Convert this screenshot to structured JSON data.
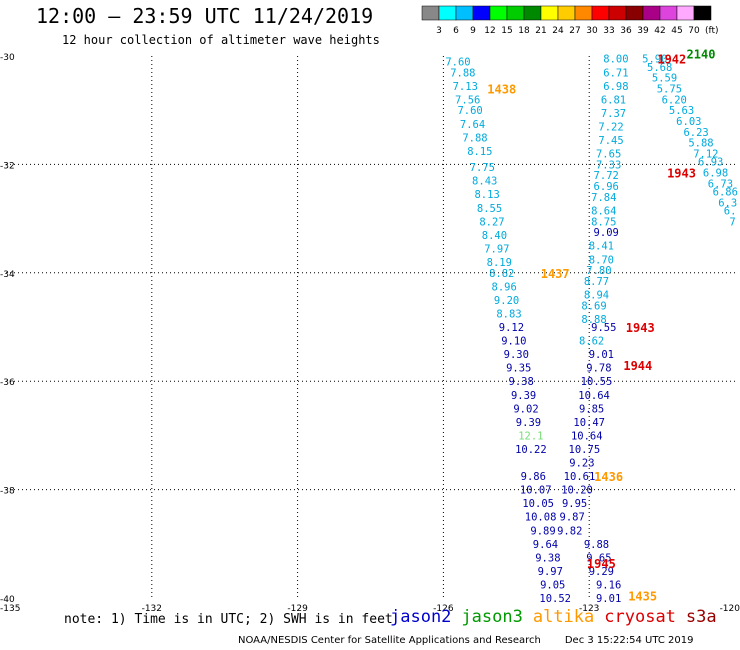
{
  "title": "12:00 – 23:59 UTC 11/24/2019",
  "subtitle": "12 hour collection of altimeter wave heights",
  "color_scale": {
    "unit_label": "(ft)",
    "ticks": [
      "3",
      "6",
      "9",
      "12",
      "15",
      "18",
      "21",
      "24",
      "27",
      "30",
      "33",
      "36",
      "39",
      "42",
      "45",
      "70"
    ],
    "colors": [
      "#888888",
      "#00ffff",
      "#00bfff",
      "#0000ff",
      "#00ff00",
      "#00cc00",
      "#008800",
      "#ffff00",
      "#ffcc00",
      "#ff8800",
      "#ff0000",
      "#cc0000",
      "#880000",
      "#aa0088",
      "#dd44dd",
      "#ffaaff",
      "#000000"
    ]
  },
  "note": "note: 1) Time is in UTC; 2) SWH is in feet",
  "satellites": [
    {
      "name": "jason2",
      "color": "#0000cc"
    },
    {
      "name": "jason3",
      "color": "#009900"
    },
    {
      "name": "altika",
      "color": "#ff9900"
    },
    {
      "name": "cryosat",
      "color": "#dd0000"
    },
    {
      "name": "s3a",
      "color": "#990000"
    }
  ],
  "footer_left": "NOAA/NESDIS Center for Satellite Applications and Research",
  "footer_right": "Dec  3 15:22:54 UTC 2019",
  "chart_data": {
    "type": "scatter",
    "xlim": [
      -135,
      -120
    ],
    "ylim": [
      -40,
      -30
    ],
    "x_ticks": [
      "-135",
      "-132",
      "-129",
      "-126",
      "-123",
      "-120"
    ],
    "y_ticks": [
      "-30",
      "-32",
      "-34",
      "-36",
      "-38",
      "-40"
    ],
    "grid": true,
    "tracks": [
      {
        "sat": "altika",
        "color": "#00aadd",
        "points": [
          {
            "lon": -125.7,
            "lat": -30.1,
            "value": "7.60"
          },
          {
            "lon": -125.6,
            "lat": -30.3,
            "value": "7.88"
          },
          {
            "lon": -125.55,
            "lat": -30.55,
            "value": "7.13"
          },
          {
            "lon": -125.5,
            "lat": -30.8,
            "value": "7.56"
          },
          {
            "lon": -125.45,
            "lat": -31.0,
            "value": "7.60"
          },
          {
            "lon": -125.4,
            "lat": -31.25,
            "value": "7.64"
          },
          {
            "lon": -125.35,
            "lat": -31.5,
            "value": "7.88"
          },
          {
            "lon": -125.25,
            "lat": -31.75,
            "value": "8.15"
          },
          {
            "lon": -125.2,
            "lat": -32.05,
            "value": "7.75"
          },
          {
            "lon": -125.15,
            "lat": -32.3,
            "value": "8.43"
          },
          {
            "lon": -125.1,
            "lat": -32.55,
            "value": "8.13"
          },
          {
            "lon": -125.05,
            "lat": -32.8,
            "value": "8.55"
          },
          {
            "lon": -125.0,
            "lat": -33.05,
            "value": "8.27"
          },
          {
            "lon": -124.95,
            "lat": -33.3,
            "value": "8.40"
          },
          {
            "lon": -124.9,
            "lat": -33.55,
            "value": "7.97"
          },
          {
            "lon": -124.85,
            "lat": -33.8,
            "value": "8.19"
          },
          {
            "lon": -124.8,
            "lat": -34.0,
            "value": "8.82"
          },
          {
            "lon": -124.75,
            "lat": -34.25,
            "value": "8.96"
          },
          {
            "lon": -124.7,
            "lat": -34.5,
            "value": "9.20"
          },
          {
            "lon": -124.65,
            "lat": -34.75,
            "value": "8.83"
          }
        ]
      },
      {
        "sat": "jason2",
        "color": "#0000aa",
        "points": [
          {
            "lon": -124.6,
            "lat": -35.0,
            "value": "9.12"
          },
          {
            "lon": -124.55,
            "lat": -35.25,
            "value": "9.10"
          },
          {
            "lon": -124.5,
            "lat": -35.5,
            "value": "9.30"
          },
          {
            "lon": -124.45,
            "lat": -35.75,
            "value": "9.35"
          },
          {
            "lon": -124.4,
            "lat": -36.0,
            "value": "9.38"
          },
          {
            "lon": -124.35,
            "lat": -36.25,
            "value": "9.39"
          },
          {
            "lon": -124.3,
            "lat": -36.5,
            "value": "9.02"
          },
          {
            "lon": -124.25,
            "lat": -36.75,
            "value": "9.39"
          },
          {
            "lon": -124.2,
            "lat": -37.25,
            "value": "10.22"
          },
          {
            "lon": -124.15,
            "lat": -37.75,
            "value": "9.86"
          },
          {
            "lon": -124.1,
            "lat": -38.0,
            "value": "10.07"
          },
          {
            "lon": -124.05,
            "lat": -38.25,
            "value": "10.05"
          },
          {
            "lon": -124.0,
            "lat": -38.5,
            "value": "10.08"
          },
          {
            "lon": -123.95,
            "lat": -38.75,
            "value": "9.89"
          },
          {
            "lon": -123.9,
            "lat": -39.0,
            "value": "9.64"
          },
          {
            "lon": -123.85,
            "lat": -39.25,
            "value": "9.38"
          },
          {
            "lon": -123.8,
            "lat": -39.5,
            "value": "9.97"
          },
          {
            "lon": -123.75,
            "lat": -39.75,
            "value": "9.05"
          },
          {
            "lon": -123.7,
            "lat": -40.0,
            "value": "10.52"
          }
        ]
      },
      {
        "sat": "jason2",
        "color": "#0000aa",
        "points": [
          {
            "lon": -122.65,
            "lat": -33.25,
            "value": "9.09"
          },
          {
            "lon": -122.7,
            "lat": -35.0,
            "value": "9.55"
          },
          {
            "lon": -122.75,
            "lat": -35.5,
            "value": "9.01"
          },
          {
            "lon": -122.8,
            "lat": -35.75,
            "value": "9.78"
          },
          {
            "lon": -122.85,
            "lat": -36.0,
            "value": "10.55"
          },
          {
            "lon": -122.9,
            "lat": -36.25,
            "value": "10.64"
          },
          {
            "lon": -122.95,
            "lat": -36.5,
            "value": "9.85"
          },
          {
            "lon": -123.0,
            "lat": -36.75,
            "value": "10.47"
          },
          {
            "lon": -123.05,
            "lat": -37.0,
            "value": "10.64"
          },
          {
            "lon": -123.1,
            "lat": -37.25,
            "value": "10.75"
          },
          {
            "lon": -123.15,
            "lat": -37.5,
            "value": "9.23"
          },
          {
            "lon": -123.2,
            "lat": -37.75,
            "value": "10.61"
          },
          {
            "lon": -123.25,
            "lat": -38.0,
            "value": "10.20"
          },
          {
            "lon": -123.3,
            "lat": -38.25,
            "value": "9.95"
          },
          {
            "lon": -123.35,
            "lat": -38.5,
            "value": "9.87"
          },
          {
            "lon": -123.4,
            "lat": -38.75,
            "value": "9.82"
          },
          {
            "lon": -122.85,
            "lat": -39.0,
            "value": "9.88"
          },
          {
            "lon": -122.8,
            "lat": -39.25,
            "value": "9.65"
          },
          {
            "lon": -122.75,
            "lat": -39.5,
            "value": "9.29"
          },
          {
            "lon": -122.6,
            "lat": -39.75,
            "value": "9.16"
          },
          {
            "lon": -122.6,
            "lat": -40.0,
            "value": "9.01"
          }
        ]
      },
      {
        "sat": "altika",
        "color": "#00aadd",
        "points": [
          {
            "lon": -122.45,
            "lat": -30.05,
            "value": "8.00"
          },
          {
            "lon": -122.45,
            "lat": -30.3,
            "value": "6.71"
          },
          {
            "lon": -122.45,
            "lat": -30.55,
            "value": "6.98"
          },
          {
            "lon": -122.5,
            "lat": -30.8,
            "value": "6.81"
          },
          {
            "lon": -122.5,
            "lat": -31.05,
            "value": "7.37"
          },
          {
            "lon": -122.55,
            "lat": -31.3,
            "value": "7.22"
          },
          {
            "lon": -122.55,
            "lat": -31.55,
            "value": "7.45"
          },
          {
            "lon": -122.6,
            "lat": -31.8,
            "value": "7.65"
          },
          {
            "lon": -122.6,
            "lat": -32.0,
            "value": "7.33"
          },
          {
            "lon": -122.65,
            "lat": -32.2,
            "value": "7.72"
          },
          {
            "lon": -122.65,
            "lat": -32.4,
            "value": "6.96"
          },
          {
            "lon": -122.7,
            "lat": -32.6,
            "value": "7.84"
          },
          {
            "lon": -122.7,
            "lat": -32.85,
            "value": "8.64"
          },
          {
            "lon": -122.7,
            "lat": -33.05,
            "value": "8.75"
          },
          {
            "lon": -122.75,
            "lat": -33.5,
            "value": "8.41"
          },
          {
            "lon": -122.75,
            "lat": -33.75,
            "value": "8.70"
          },
          {
            "lon": -122.8,
            "lat": -33.95,
            "value": "7.80"
          },
          {
            "lon": -122.85,
            "lat": -34.15,
            "value": "8.77"
          },
          {
            "lon": -122.85,
            "lat": -34.4,
            "value": "8.94"
          },
          {
            "lon": -122.9,
            "lat": -34.6,
            "value": "8.69"
          },
          {
            "lon": -122.9,
            "lat": -34.85,
            "value": "8.88"
          },
          {
            "lon": -122.95,
            "lat": -35.25,
            "value": "8.62"
          }
        ]
      },
      {
        "sat": "altika",
        "color": "#00aadd",
        "points": [
          {
            "lon": -121.65,
            "lat": -30.05,
            "value": "5.90"
          },
          {
            "lon": -121.55,
            "lat": -30.2,
            "value": "5.68"
          },
          {
            "lon": -121.45,
            "lat": -30.4,
            "value": "5.59"
          },
          {
            "lon": -121.35,
            "lat": -30.6,
            "value": "5.75"
          },
          {
            "lon": -121.25,
            "lat": -30.8,
            "value": "6.20"
          },
          {
            "lon": -121.1,
            "lat": -31.0,
            "value": "5.63"
          },
          {
            "lon": -120.95,
            "lat": -31.2,
            "value": "6.03"
          },
          {
            "lon": -120.8,
            "lat": -31.4,
            "value": "6.23"
          },
          {
            "lon": -120.7,
            "lat": -31.6,
            "value": "5.88"
          },
          {
            "lon": -120.6,
            "lat": -31.8,
            "value": "7.12"
          },
          {
            "lon": -120.5,
            "lat": -31.95,
            "value": "6.93"
          },
          {
            "lon": -120.4,
            "lat": -32.15,
            "value": "6.98"
          },
          {
            "lon": -120.3,
            "lat": -32.35,
            "value": "6.73"
          },
          {
            "lon": -120.2,
            "lat": -32.5,
            "value": "6.86"
          },
          {
            "lon": -120.15,
            "lat": -32.7,
            "value": "6.3"
          },
          {
            "lon": -120.1,
            "lat": -32.85,
            "value": "6."
          },
          {
            "lon": -120.05,
            "lat": -33.05,
            "value": "7"
          }
        ]
      },
      {
        "sat": "jason3",
        "color": "#77dd77",
        "points": [
          {
            "lon": -124.2,
            "lat": -37.0,
            "value": "12.1"
          }
        ]
      }
    ],
    "time_labels": [
      {
        "lon": -124.8,
        "lat": -30.6,
        "text": "1438",
        "color": "#ff9900"
      },
      {
        "lon": -123.7,
        "lat": -34.0,
        "text": "1437",
        "color": "#ff9900"
      },
      {
        "lon": -122.6,
        "lat": -37.75,
        "text": "1436",
        "color": "#ff9900"
      },
      {
        "lon": -121.9,
        "lat": -39.95,
        "text": "1435",
        "color": "#ff9900"
      },
      {
        "lon": -121.3,
        "lat": -30.05,
        "text": "1942",
        "color": "#dd0000"
      },
      {
        "lon": -121.1,
        "lat": -32.15,
        "text": "1943",
        "color": "#dd0000"
      },
      {
        "lon": -121.95,
        "lat": -35.0,
        "text": "1943",
        "color": "#dd0000"
      },
      {
        "lon": -122.0,
        "lat": -35.7,
        "text": "1944",
        "color": "#dd0000"
      },
      {
        "lon": -122.75,
        "lat": -39.35,
        "text": "1945",
        "color": "#dd0000"
      },
      {
        "lon": -120.7,
        "lat": -29.95,
        "text": "2140",
        "color": "#008800"
      }
    ]
  }
}
